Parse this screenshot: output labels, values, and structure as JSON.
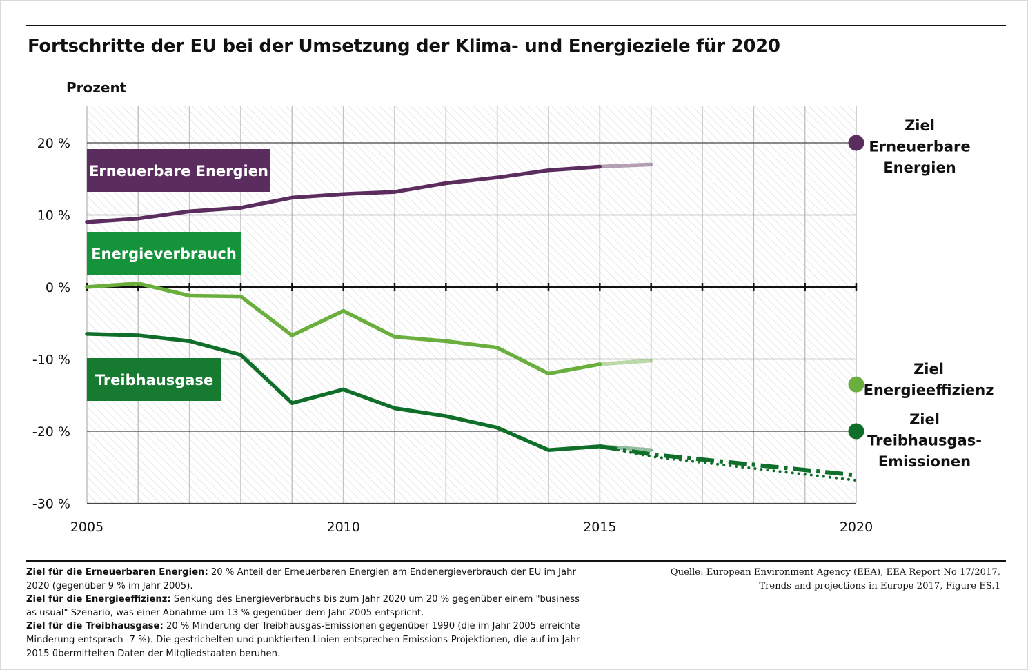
{
  "title": "Fortschritte der EU bei der Umsetzung der Klima- und Energieziele für 2020",
  "chart_data": {
    "type": "line",
    "ylabel": "Prozent",
    "xlabel": "",
    "xlim": [
      2005,
      2020
    ],
    "ylim": [
      -30,
      25
    ],
    "x_ticks": [
      2005,
      2010,
      2015,
      2020
    ],
    "x_tick_labels": [
      "2005",
      "2010",
      "2015",
      "2020"
    ],
    "y_ticks": [
      -30,
      -20,
      -10,
      0,
      10,
      20
    ],
    "y_tick_labels": [
      "-30 %",
      "-20 %",
      "-10 %",
      "0 %",
      "10 %",
      "20 %"
    ],
    "grid": true,
    "series": [
      {
        "name": "Erneuerbare Energien",
        "color": "#5b2d5e",
        "x": [
          2005,
          2006,
          2007,
          2008,
          2009,
          2010,
          2011,
          2012,
          2013,
          2014,
          2015
        ],
        "values": [
          9.0,
          9.5,
          10.5,
          11.0,
          12.4,
          12.9,
          13.2,
          14.4,
          15.2,
          16.2,
          16.7
        ],
        "estimate": {
          "x": [
            2015,
            2016
          ],
          "values": [
            16.7,
            17.0
          ]
        },
        "target_label": "Ziel Erneuerbare Energien",
        "target": {
          "x": 2020,
          "value": 20
        }
      },
      {
        "name": "Energieverbrauch",
        "color": "#6aaf3d",
        "x": [
          2005,
          2006,
          2007,
          2008,
          2009,
          2010,
          2011,
          2012,
          2013,
          2014,
          2015
        ],
        "values": [
          0.0,
          0.5,
          -1.2,
          -1.3,
          -6.7,
          -3.3,
          -6.9,
          -7.5,
          -8.4,
          -12.0,
          -10.7
        ],
        "estimate": {
          "x": [
            2015,
            2016
          ],
          "values": [
            -10.7,
            -10.2
          ]
        },
        "target_label": "Ziel Energieeffizienz",
        "target": {
          "x": 2020,
          "value": -13.5
        }
      },
      {
        "name": "Treibhausgase",
        "color": "#0f6f2a",
        "x": [
          2005,
          2006,
          2007,
          2008,
          2009,
          2010,
          2011,
          2012,
          2013,
          2014,
          2015
        ],
        "values": [
          -6.5,
          -6.7,
          -7.5,
          -9.4,
          -16.1,
          -14.2,
          -16.8,
          -17.9,
          -19.5,
          -22.6,
          -22.1
        ],
        "estimate": {
          "x": [
            2015,
            2016
          ],
          "values": [
            -22.1,
            -22.6
          ]
        },
        "projection_dashed": {
          "x": [
            2015,
            2016,
            2020
          ],
          "values": [
            -22.1,
            -23.2,
            -26.1
          ]
        },
        "projection_dotted": {
          "x": [
            2015,
            2016,
            2020
          ],
          "values": [
            -22.1,
            -23.5,
            -26.8
          ]
        },
        "target_label": "Ziel Treibhausgas-Emissionen",
        "target": {
          "x": 2020,
          "value": -20
        }
      }
    ]
  },
  "target_labels": {
    "renewables": [
      "Ziel",
      "Erneuerbare",
      "Energien"
    ],
    "efficiency": [
      "Ziel",
      "Energieeffizienz"
    ],
    "ghg": [
      "Ziel",
      "Treibhausgas-",
      "Emissionen"
    ]
  },
  "notes": {
    "renewables_label": "Ziel für die Erneuerbaren Energien:",
    "renewables_text": " 20 % Anteil der Erneuerbaren Energien am Endenergieverbrauch der EU im Jahr 2020 (gegenüber 9 % im Jahr 2005).",
    "efficiency_label": "Ziel für die Energieeffizienz:",
    "efficiency_text": " Senkung des Energieverbrauchs bis zum Jahr 2020 um 20 % gegenüber einem \"business as usual\" Szenario, was einer Abnahme um 13 % gegenüber dem Jahr 2005 entspricht.",
    "ghg_label": "Ziel für die Treibhausgase:",
    "ghg_text": " 20 % Minderung der Treibhausgas-Emissionen gegenüber 1990 (die im Jahr 2005 erreichte Minderung entsprach -7 %). Die gestrichelten und punktierten Linien entsprechen Emissions-Projektionen, die auf im Jahr 2015 übermittelten Daten der Mitgliedstaaten beruhen."
  },
  "source": {
    "line1": "Quelle: European Environment Agency (EEA), EEA Report No 17/2017,",
    "line2": "Trends and projections in Europe 2017, Figure ES.1"
  }
}
